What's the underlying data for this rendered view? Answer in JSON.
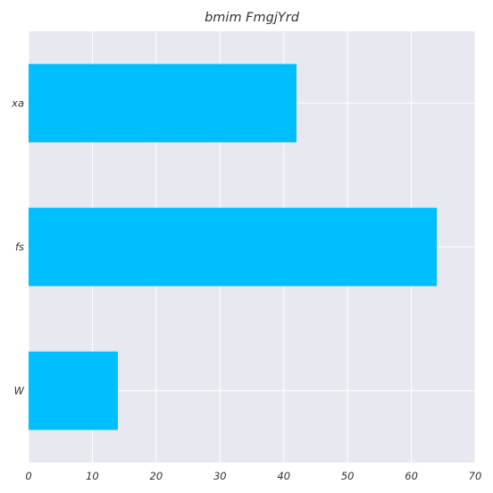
{
  "chart_data": {
    "type": "bar",
    "orientation": "horizontal",
    "title": "bmim FmgjYrd",
    "categories": [
      "xa",
      "fs",
      "W"
    ],
    "values": [
      42,
      64,
      14
    ],
    "xlim": [
      0,
      70
    ],
    "xticks": [
      "0",
      "10",
      "20",
      "30",
      "40",
      "50",
      "60",
      "70"
    ],
    "xlabel": "",
    "ylabel": "",
    "grid": true,
    "colors": {
      "bar": "#00bfff",
      "plot_background": "#e8e8f0",
      "grid": "#ffffff"
    }
  }
}
